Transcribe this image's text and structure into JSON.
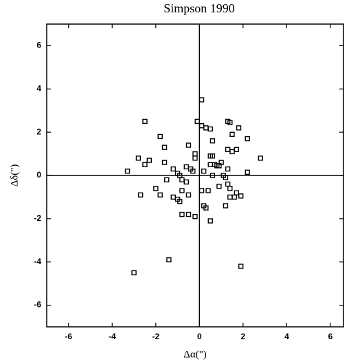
{
  "chart_data": {
    "type": "scatter",
    "title": "Simpson 1990",
    "x_label": "Δα(\")",
    "y_label": "Δδ(\")",
    "xlim": [
      -7,
      6.6
    ],
    "ylim": [
      -7,
      7
    ],
    "xticks": [
      -6,
      -4,
      -2,
      0,
      2,
      4,
      6
    ],
    "yticks": [
      -6,
      -4,
      -2,
      0,
      2,
      4,
      6
    ],
    "color": "#000000",
    "x": [
      0.1,
      -2.5,
      -0.1,
      0.1,
      0.3,
      0.5,
      1.3,
      1.4,
      1.8,
      -1.8,
      1.5,
      0.6,
      2.2,
      -1.6,
      -0.5,
      1.3,
      1.7,
      1.5,
      -0.2,
      -2.8,
      -2.3,
      -0.2,
      0.6,
      0.5,
      2.8,
      -1.6,
      1.0,
      0.8,
      0.9,
      0.5,
      -2.5,
      -3.3,
      -1.2,
      -0.6,
      -0.4,
      0.2,
      0.7,
      1.3,
      2.2,
      -1.0,
      -0.3,
      -0.9,
      -1.5,
      -0.8,
      -0.6,
      0.6,
      1.1,
      1.2,
      1.3,
      1.4,
      1.7,
      1.6,
      1.9,
      1.4,
      -2.0,
      -2.7,
      -1.8,
      -1.2,
      -0.8,
      -0.5,
      0.4,
      0.9,
      0.1,
      -1.0,
      -0.9,
      -0.8,
      -0.5,
      -0.2,
      0.2,
      0.3,
      0.5,
      1.2,
      -1.4,
      -3.0,
      1.9
    ],
    "values": [
      3.5,
      2.5,
      2.5,
      2.3,
      2.2,
      2.15,
      2.5,
      2.45,
      2.2,
      1.8,
      1.9,
      1.6,
      1.7,
      1.3,
      1.4,
      1.2,
      1.2,
      1.1,
      1.0,
      0.8,
      0.7,
      0.8,
      0.9,
      0.9,
      0.8,
      0.6,
      0.6,
      0.45,
      0.45,
      0.5,
      0.5,
      0.2,
      0.3,
      0.4,
      0.3,
      0.2,
      0.5,
      0.3,
      0.15,
      0.1,
      0.2,
      0.0,
      -0.2,
      -0.2,
      -0.3,
      0.0,
      0.0,
      -0.1,
      -0.4,
      -0.6,
      -0.8,
      -1.0,
      -0.95,
      -1.0,
      -0.6,
      -0.9,
      -0.9,
      -1.0,
      -0.7,
      -0.9,
      -0.7,
      -0.5,
      -0.7,
      -1.1,
      -1.2,
      -1.8,
      -1.8,
      -1.9,
      -1.4,
      -1.5,
      -2.1,
      -1.4,
      -3.9,
      -4.5,
      -4.2
    ]
  }
}
